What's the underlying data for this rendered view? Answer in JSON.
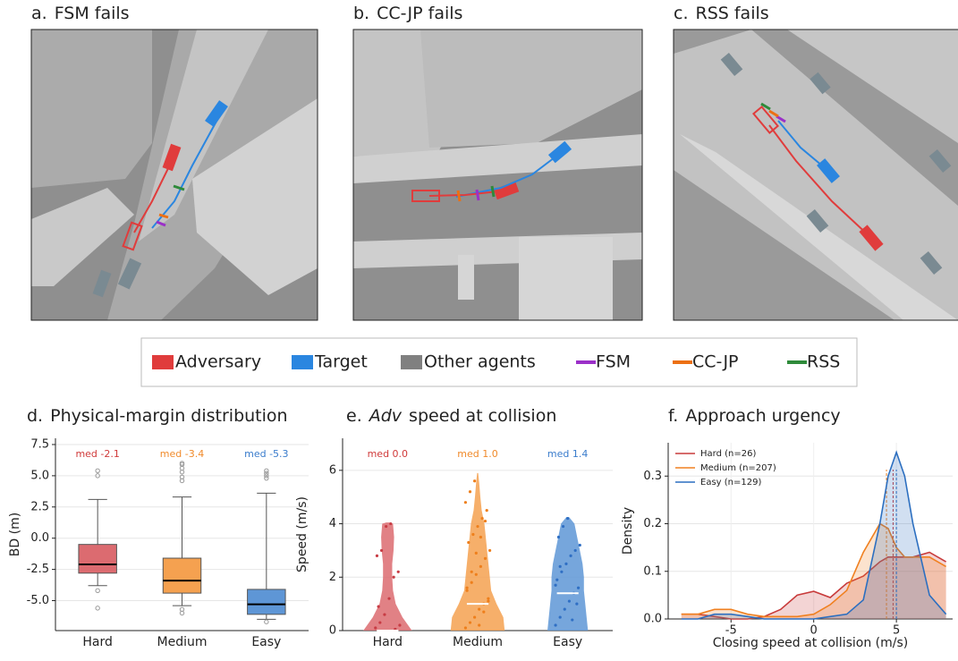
{
  "panels": [
    {
      "label": "a.",
      "title": "FSM fails"
    },
    {
      "label": "b.",
      "title": "CC-JP fails"
    },
    {
      "label": "c.",
      "title": "RSS fails"
    }
  ],
  "legend": [
    {
      "name": "Adversary",
      "color": "#e03c3c",
      "shape": "box"
    },
    {
      "name": "Target",
      "color": "#2a86e0",
      "shape": "box"
    },
    {
      "name": "Other agents",
      "color": "#808080",
      "shape": "box"
    },
    {
      "name": "FSM",
      "color": "#9b30c8",
      "shape": "line"
    },
    {
      "name": "CC-JP",
      "color": "#ec7014",
      "shape": "line"
    },
    {
      "name": "RSS",
      "color": "#2e8a3a",
      "shape": "line"
    }
  ],
  "chart_data": [
    {
      "type": "box",
      "label": "d.",
      "title": "Physical-margin distribution",
      "ylabel": "BD (m)",
      "categories": [
        "Hard",
        "Medium",
        "Easy"
      ],
      "colors": [
        "#dc6b70",
        "#f5a150",
        "#5e96d6"
      ],
      "label_colors": [
        "#d03a3a",
        "#f08a2a",
        "#3a7ccc"
      ],
      "whislo": [
        -3.8,
        -5.4,
        -6.5
      ],
      "q1": [
        -2.8,
        -4.4,
        -6.1
      ],
      "median": [
        -2.1,
        -3.4,
        -5.3
      ],
      "q3": [
        -0.5,
        -1.6,
        -4.1
      ],
      "whishi": [
        3.1,
        3.3,
        3.6
      ],
      "median_labels": [
        "med -2.1",
        "med -3.4",
        "med -5.3"
      ],
      "outliers": [
        [
          5.4,
          5.0,
          -4.2,
          -5.6
        ],
        [
          6.0,
          5.9,
          5.6,
          5.3,
          4.9,
          4.6,
          -5.7,
          -6.0
        ],
        [
          5.4,
          5.2,
          5.0,
          4.8,
          -6.7
        ]
      ],
      "ylim": [
        -7.4,
        8
      ],
      "yticks": [
        {
          "value": -5,
          "label": "-5.0"
        },
        -2.5,
        {
          "value": 0,
          "label": "0.0"
        },
        2.5,
        {
          "value": 5,
          "label": "5.0"
        },
        7.5
      ],
      "grid": true
    },
    {
      "type": "violin",
      "label": "e.",
      "title_italic": "Adv",
      "title": "speed at collision",
      "ylabel": "Speed (m/s)",
      "categories": [
        "Hard",
        "Medium",
        "Easy"
      ],
      "colors": [
        "#dc6b70",
        "#f5a150",
        "#5e96d6"
      ],
      "point_colors": [
        "#c83c44",
        "#ee7f1c",
        "#2f6fc4"
      ],
      "label_colors": [
        "#d03a3a",
        "#f08a2a",
        "#3a7ccc"
      ],
      "grid_y": [
        [
          0,
          0.5,
          1,
          1.5,
          2,
          2.5,
          3,
          3.5,
          4,
          4.05
        ],
        [
          0,
          0.5,
          1,
          1.5,
          2,
          2.5,
          3,
          3.5,
          4,
          4.5,
          5,
          5.5,
          5.9
        ],
        [
          0,
          0.5,
          1,
          1.5,
          2,
          2.5,
          3,
          3.5,
          4,
          4.25
        ]
      ],
      "widths": [
        [
          0.9,
          0.55,
          0.3,
          0.2,
          0.17,
          0.17,
          0.22,
          0.24,
          0.2,
          0.05
        ],
        [
          1.0,
          0.95,
          0.7,
          0.5,
          0.45,
          0.4,
          0.35,
          0.3,
          0.25,
          0.15,
          0.1,
          0.06,
          0.02
        ],
        [
          0.75,
          0.7,
          0.65,
          0.6,
          0.6,
          0.55,
          0.45,
          0.35,
          0.25,
          0.05
        ]
      ],
      "points": [
        [
          0.1,
          0.3,
          0.6,
          1.2,
          2.0,
          2.2,
          2.8,
          3.0,
          3.9,
          4.0,
          0.05,
          0.2,
          0.9
        ],
        [
          0.1,
          0.3,
          0.5,
          0.8,
          1.0,
          1.2,
          1.5,
          1.8,
          2.1,
          2.4,
          2.7,
          3.0,
          3.3,
          3.6,
          3.9,
          4.2,
          4.5,
          4.8,
          5.2,
          5.6,
          0.2,
          0.7,
          1.1,
          1.6,
          2.2,
          2.9,
          3.5,
          4.1
        ],
        [
          0.2,
          0.5,
          0.8,
          1.1,
          1.4,
          1.6,
          1.9,
          2.2,
          2.5,
          2.8,
          3.0,
          3.2,
          3.5,
          3.9,
          4.2,
          0.4,
          1.0,
          1.7,
          2.4
        ]
      ],
      "median": [
        0.0,
        1.0,
        1.4
      ],
      "median_labels": [
        "med 0.0",
        "med 1.0",
        "med 1.4"
      ],
      "ylim": [
        0,
        7.2
      ],
      "yticks": [
        0,
        2,
        4,
        6
      ],
      "grid": true
    },
    {
      "type": "line",
      "label": "f.",
      "title": "Approach urgency",
      "xlabel": "Closing speed at collision (m/s)",
      "ylabel": "Density",
      "x": [
        -8,
        -7,
        -6,
        -5,
        -4,
        -3,
        -2,
        -1,
        0,
        1,
        2,
        3,
        4,
        4.5,
        5,
        5.5,
        6,
        7,
        8
      ],
      "series": [
        {
          "name": "Hard (n=26)",
          "color": "#c83c3c",
          "median": 4.8,
          "values": [
            0.01,
            0.01,
            0.005,
            0.0,
            0.0,
            0.005,
            0.02,
            0.05,
            0.058,
            0.045,
            0.075,
            0.09,
            0.12,
            0.13,
            0.13,
            0.13,
            0.13,
            0.14,
            0.12
          ]
        },
        {
          "name": "Medium (n=207)",
          "color": "#f08020",
          "median": 4.4,
          "values": [
            0.01,
            0.01,
            0.02,
            0.02,
            0.01,
            0.005,
            0.005,
            0.005,
            0.01,
            0.03,
            0.06,
            0.14,
            0.2,
            0.19,
            0.15,
            0.13,
            0.13,
            0.13,
            0.11
          ]
        },
        {
          "name": "Easy (n=129)",
          "color": "#2c6fc0",
          "median": 5.0,
          "values": [
            0.0,
            0.0,
            0.01,
            0.01,
            0.005,
            0.0,
            0.0,
            0.0,
            0.0,
            0.005,
            0.01,
            0.04,
            0.2,
            0.3,
            0.35,
            0.3,
            0.2,
            0.05,
            0.01
          ]
        }
      ],
      "xlim": [
        -8.8,
        8.4
      ],
      "xticks": [
        -5,
        0,
        5
      ],
      "ylim": [
        0,
        0.37
      ],
      "yticks": [
        {
          "value": 0,
          "label": "0.0"
        },
        0.1,
        0.2,
        0.3
      ],
      "grid": true,
      "legend": "upper left"
    }
  ]
}
